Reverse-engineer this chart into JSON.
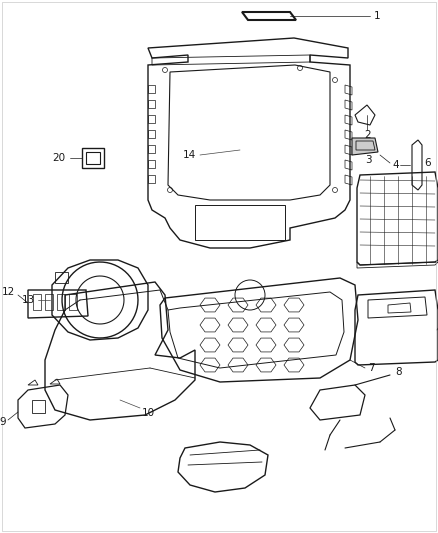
{
  "bg_color": "#ffffff",
  "fig_width": 4.38,
  "fig_height": 5.33,
  "dpi": 100,
  "lc": "#1a1a1a",
  "lw": 0.8,
  "fs": 7.5
}
